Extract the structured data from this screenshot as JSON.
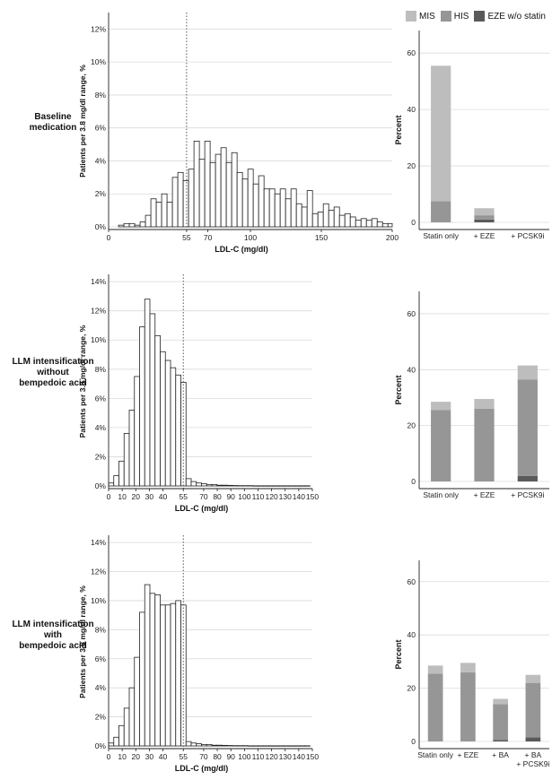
{
  "legend": {
    "items": [
      {
        "label": "MIS",
        "color": "#bdbdbd"
      },
      {
        "label": "HIS",
        "color": "#969696"
      },
      {
        "label": "EZE w/o statin",
        "color": "#5a5a5a"
      }
    ]
  },
  "rows": [
    {
      "label": "Baseline\nmedication"
    },
    {
      "label": "LLM intensification\nwithout\nbempedoic acid"
    },
    {
      "label": "LLM intensification\nwith\nbempedoic acid"
    }
  ],
  "chart_data": [
    {
      "type": "bar",
      "subtype": "histogram",
      "xlabel": "LDL-C (mg/dl)",
      "ylabel": "Patients per 3.8 mg/dl range, %",
      "xlim": [
        0,
        200
      ],
      "ylim": [
        0,
        13
      ],
      "xticks": [
        0,
        55,
        70,
        100,
        150,
        200
      ],
      "yticks": [
        0,
        2,
        4,
        6,
        8,
        10,
        12
      ],
      "ytick_format": "percent",
      "reference_line": 55,
      "bin_start": 7,
      "bin_width": 3.8,
      "values": [
        0.1,
        0.2,
        0.2,
        0.1,
        0.3,
        0.7,
        1.7,
        1.5,
        2.0,
        1.5,
        3.0,
        3.3,
        2.8,
        3.5,
        5.2,
        4.1,
        5.2,
        3.9,
        4.4,
        4.8,
        3.9,
        4.5,
        3.3,
        2.9,
        3.5,
        2.6,
        3.1,
        2.3,
        2.3,
        2.0,
        2.3,
        1.7,
        2.3,
        1.4,
        1.2,
        2.2,
        0.8,
        0.9,
        1.4,
        1.0,
        1.2,
        0.7,
        0.8,
        0.6,
        0.4,
        0.5,
        0.4,
        0.5,
        0.3,
        0.2,
        0.2,
        0.3,
        0.2,
        0.1,
        0.2,
        0.2,
        0.1,
        0.1,
        0.1,
        0.1,
        0.1,
        0.1,
        0.1,
        0.1,
        0.1,
        0.1
      ]
    },
    {
      "type": "bar",
      "stacked": true,
      "ylabel": "Percent",
      "ylim": [
        0,
        68
      ],
      "yticks": [
        0,
        20,
        40,
        60
      ],
      "categories": [
        "Statin only",
        "+ EZE",
        "+ PCSK9i"
      ],
      "series": [
        {
          "name": "EZE w/o statin",
          "values": [
            0,
            1,
            0
          ]
        },
        {
          "name": "HIS",
          "values": [
            7.5,
            1.5,
            0
          ]
        },
        {
          "name": "MIS",
          "values": [
            48,
            2.5,
            0
          ]
        }
      ]
    },
    {
      "type": "bar",
      "subtype": "histogram",
      "xlabel": "LDL-C (mg/dl)",
      "ylabel": "Patients per 3.8 mg/dl range, %",
      "xlim": [
        0,
        150
      ],
      "ylim": [
        0,
        14.5
      ],
      "xticks": [
        0,
        10,
        20,
        30,
        40,
        55,
        70,
        80,
        90,
        100,
        110,
        120,
        130,
        140,
        150
      ],
      "yticks": [
        0,
        2,
        4,
        6,
        8,
        10,
        12,
        14
      ],
      "ytick_format": "percent",
      "reference_line": 55,
      "bin_start": 0,
      "bin_width": 3.8,
      "values": [
        0.2,
        0.7,
        1.7,
        3.6,
        5.2,
        7.5,
        10.9,
        12.8,
        11.8,
        10.3,
        9.2,
        8.6,
        8.1,
        7.6,
        7.1,
        0.5,
        0.3,
        0.2,
        0.15,
        0.1,
        0.1,
        0.05,
        0.05,
        0.04,
        0.03,
        0.02,
        0.02,
        0.02,
        0.01,
        0.01,
        0.01,
        0.01,
        0.01,
        0.01,
        0.01,
        0.01,
        0.01,
        0.01,
        0.01
      ]
    },
    {
      "type": "bar",
      "stacked": true,
      "ylabel": "Percent",
      "ylim": [
        0,
        68
      ],
      "yticks": [
        0,
        20,
        40,
        60
      ],
      "categories": [
        "Statin only",
        "+ EZE",
        "+ PCSK9i"
      ],
      "series": [
        {
          "name": "EZE w/o statin",
          "values": [
            0,
            0,
            2
          ]
        },
        {
          "name": "HIS",
          "values": [
            25.5,
            26,
            34.5
          ]
        },
        {
          "name": "MIS",
          "values": [
            3,
            3.5,
            5
          ]
        }
      ]
    },
    {
      "type": "bar",
      "subtype": "histogram",
      "xlabel": "LDL-C (mg/dl)",
      "ylabel": "Patients per 3.8 mg/dl range, %",
      "xlim": [
        0,
        150
      ],
      "ylim": [
        0,
        14.5
      ],
      "xticks": [
        0,
        10,
        20,
        30,
        40,
        55,
        70,
        80,
        90,
        100,
        110,
        120,
        130,
        140,
        150
      ],
      "yticks": [
        0,
        2,
        4,
        6,
        8,
        10,
        12,
        14
      ],
      "ytick_format": "percent",
      "reference_line": 55,
      "bin_start": 0,
      "bin_width": 3.8,
      "values": [
        0.2,
        0.6,
        1.4,
        2.6,
        4.0,
        6.1,
        9.2,
        11.1,
        10.5,
        10.4,
        9.7,
        9.7,
        9.8,
        10.0,
        9.7,
        0.3,
        0.2,
        0.15,
        0.1,
        0.1,
        0.05,
        0.05,
        0.04,
        0.03,
        0.02,
        0.02,
        0.02,
        0.01,
        0.01,
        0.01,
        0.01,
        0.01,
        0.01,
        0.01,
        0.01,
        0.01,
        0.01,
        0.01,
        0.01
      ]
    },
    {
      "type": "bar",
      "stacked": true,
      "ylabel": "Percent",
      "ylim": [
        0,
        68
      ],
      "yticks": [
        0,
        20,
        40,
        60
      ],
      "categories": [
        "Statin only",
        "+ EZE",
        "+ BA",
        "+ BA\n+ PCSK9i"
      ],
      "series": [
        {
          "name": "EZE w/o statin",
          "values": [
            0,
            0,
            0.5,
            1.5
          ]
        },
        {
          "name": "HIS",
          "values": [
            25.5,
            26,
            13.5,
            20.5
          ]
        },
        {
          "name": "MIS",
          "values": [
            3,
            3.5,
            2,
            3
          ]
        }
      ]
    }
  ]
}
